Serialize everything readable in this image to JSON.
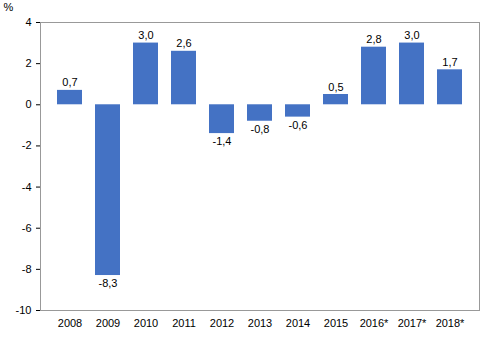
{
  "chart_data": {
    "type": "bar",
    "y_label": "%",
    "categories": [
      "2008",
      "2009",
      "2010",
      "2011",
      "2012",
      "2013",
      "2014",
      "2015",
      "2016*",
      "2017*",
      "2018*"
    ],
    "values": [
      0.7,
      -8.3,
      3.0,
      2.6,
      -1.4,
      -0.8,
      -0.6,
      0.5,
      2.8,
      3.0,
      1.7
    ],
    "value_labels": [
      "0,7",
      "-8,3",
      "3,0",
      "2,6",
      "-1,4",
      "-0,8",
      "-0,6",
      "0,5",
      "2,8",
      "3,0",
      "1,7"
    ],
    "color": "#4472c4",
    "ylim": [
      -10,
      4
    ],
    "yticks": [
      -10,
      -8,
      -6,
      -4,
      -2,
      0,
      2,
      4
    ],
    "data_labels": true,
    "grid": false
  }
}
